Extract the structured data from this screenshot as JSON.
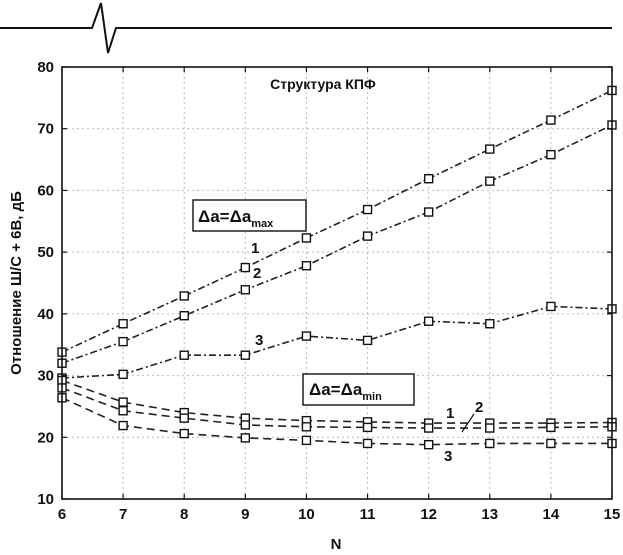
{
  "chart_data": {
    "type": "line",
    "title": "Структура КПФ",
    "xlabel": "N",
    "ylabel": "Отношение Ш/С + 6В, дБ",
    "xlim": [
      6,
      15
    ],
    "ylim": [
      10,
      80
    ],
    "x": [
      6,
      7,
      8,
      9,
      10,
      11,
      12,
      13,
      14,
      15
    ],
    "xticks": [
      "6",
      "7",
      "8",
      "9",
      "10",
      "11",
      "12",
      "13",
      "14",
      "15"
    ],
    "yticks": [
      "10",
      "20",
      "30",
      "40",
      "50",
      "60",
      "70",
      "80"
    ],
    "grid": true,
    "series": [
      {
        "group": "max",
        "name": "1",
        "style": "dashdot",
        "values": [
          33.8,
          38.4,
          42.9,
          47.5,
          52.3,
          56.9,
          61.9,
          66.7,
          71.4,
          76.2
        ]
      },
      {
        "group": "max",
        "name": "2",
        "style": "dashdot",
        "values": [
          32.0,
          35.5,
          39.7,
          43.9,
          47.8,
          52.6,
          56.5,
          61.5,
          65.8,
          70.6
        ]
      },
      {
        "group": "max",
        "name": "3",
        "style": "dashdot",
        "values": [
          29.6,
          30.2,
          33.3,
          33.3,
          36.4,
          35.7,
          38.8,
          38.4,
          41.2,
          40.8
        ]
      },
      {
        "group": "min",
        "name": "1",
        "style": "dashed",
        "values": [
          29.2,
          25.7,
          24.0,
          23.1,
          22.7,
          22.5,
          22.3,
          22.3,
          22.3,
          22.4
        ]
      },
      {
        "group": "min",
        "name": "2",
        "style": "dashed",
        "values": [
          28.0,
          24.3,
          23.1,
          22.0,
          21.7,
          21.6,
          21.5,
          21.5,
          21.6,
          21.7
        ]
      },
      {
        "group": "min",
        "name": "3",
        "style": "dashed",
        "values": [
          26.4,
          21.9,
          20.6,
          19.9,
          19.5,
          19.0,
          18.8,
          19.0,
          19.0,
          19.0
        ]
      }
    ],
    "annotations": {
      "max_box": {
        "lhs": "Δa=Δa",
        "sub": "max"
      },
      "min_box": {
        "lhs": "Δa=Δa",
        "sub": "min"
      },
      "max_labels": [
        "1",
        "2",
        "3"
      ],
      "min_labels": [
        "1",
        "2",
        "3"
      ]
    }
  }
}
